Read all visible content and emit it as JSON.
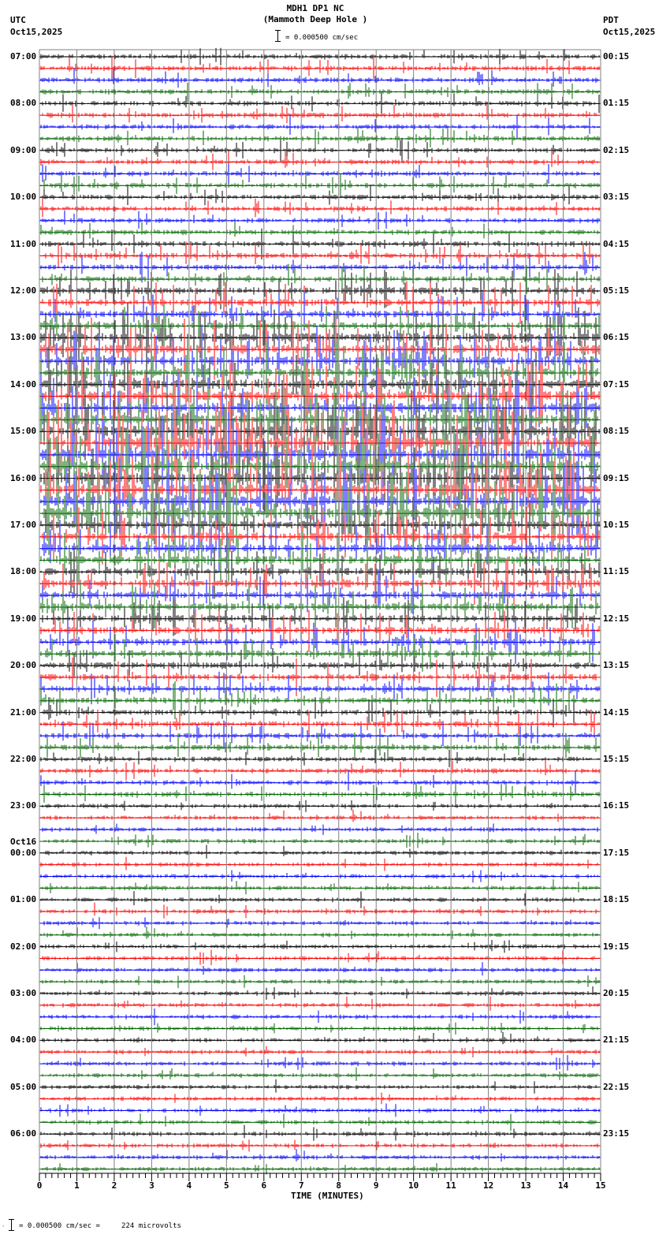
{
  "header": {
    "title_line1": "MDH1 DP1 NC",
    "title_line2": "(Mammoth Deep Hole )",
    "scale_text": "= 0.000500 cm/sec",
    "left_tz": "UTC",
    "left_date": "Oct15,2025",
    "right_tz": "PDT",
    "right_date": "Oct15,2025"
  },
  "footer": {
    "scale_note": "= 0.000500 cm/sec =     224 microvolts",
    "marker": "A"
  },
  "chart_data": {
    "type": "line",
    "title": "MDH1 DP1 NC (Mammoth Deep Hole ) helicorder",
    "xlabel": "TIME (MINUTES)",
    "ylabel": "",
    "xlim": [
      0,
      15
    ],
    "x_ticks": [
      "0",
      "1",
      "2",
      "3",
      "4",
      "5",
      "6",
      "7",
      "8",
      "9",
      "10",
      "11",
      "12",
      "13",
      "14",
      "15"
    ],
    "grid": true,
    "traces_per_hour": 4,
    "trace_colors": [
      "#000000",
      "#ff0000",
      "#0000ff",
      "#006400"
    ],
    "left_labels": [
      "07:00",
      "08:00",
      "09:00",
      "10:00",
      "11:00",
      "12:00",
      "13:00",
      "14:00",
      "15:00",
      "16:00",
      "17:00",
      "18:00",
      "19:00",
      "20:00",
      "21:00",
      "22:00",
      "23:00",
      "00:00",
      "01:00",
      "02:00",
      "03:00",
      "04:00",
      "05:00",
      "06:00"
    ],
    "left_date_change": {
      "index": 17,
      "label": "Oct16"
    },
    "right_labels": [
      "00:15",
      "01:15",
      "02:15",
      "03:15",
      "04:15",
      "05:15",
      "06:15",
      "07:15",
      "08:15",
      "09:15",
      "10:15",
      "11:15",
      "12:15",
      "13:15",
      "14:15",
      "15:15",
      "16:15",
      "17:15",
      "18:15",
      "19:15",
      "20:15",
      "21:15",
      "22:15",
      "23:15"
    ],
    "activity_by_hour": [
      3,
      3,
      3,
      3,
      4,
      6,
      9,
      10,
      12,
      12,
      8,
      7,
      6,
      5,
      4,
      3,
      2,
      2,
      2,
      2,
      2,
      2,
      2,
      2
    ],
    "scale": "0.000500 cm/sec = 224 microvolts"
  }
}
